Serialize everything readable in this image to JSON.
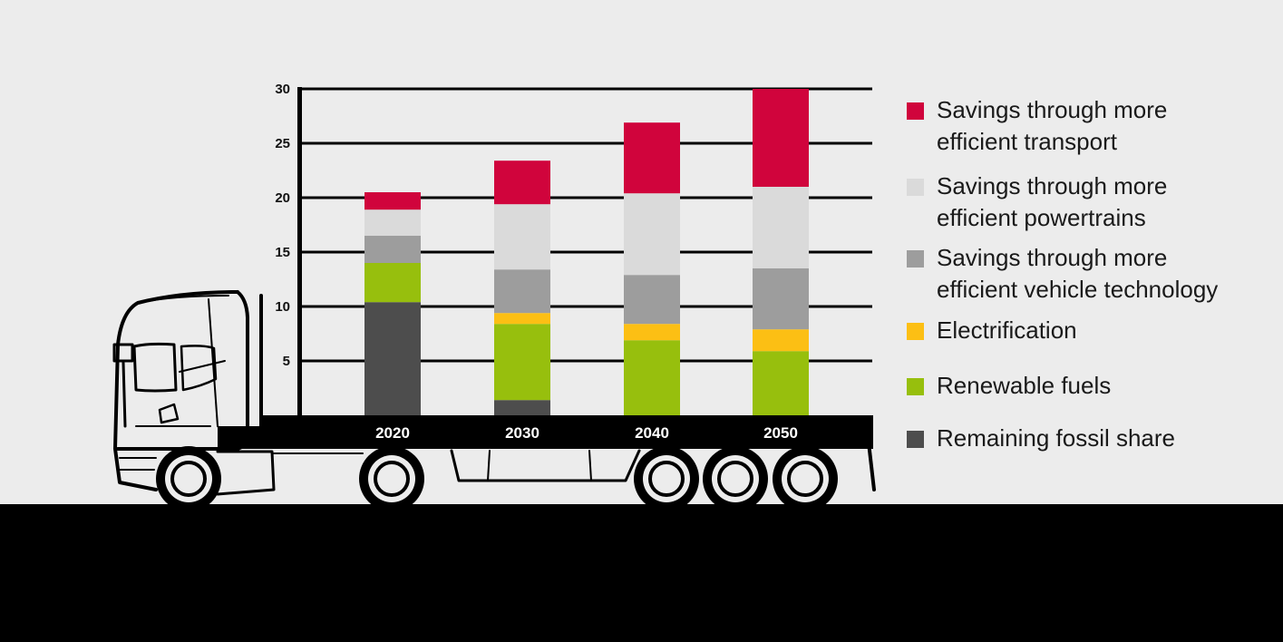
{
  "chart_data": {
    "type": "bar",
    "stacked": true,
    "title": "",
    "xlabel": "",
    "ylabel": "",
    "categories": [
      "2020",
      "2030",
      "2040",
      "2050"
    ],
    "y_ticks": [
      5,
      10,
      15,
      20,
      25,
      30
    ],
    "ylim": [
      0,
      30
    ],
    "grid": true,
    "legend_position": "right",
    "series": [
      {
        "name": "Remaining fossil share",
        "color": "#4d4d4d",
        "values": [
          10.4,
          1.4,
          0,
          0
        ]
      },
      {
        "name": "Renewable fuels",
        "color": "#97bf0d",
        "values": [
          3.6,
          7.0,
          6.9,
          5.9
        ]
      },
      {
        "name": "Electrification",
        "color": "#fcbf14",
        "values": [
          0,
          1.0,
          1.5,
          2.0
        ]
      },
      {
        "name": "Savings through more efficient vehicle technology",
        "color": "#9d9d9d",
        "values": [
          2.5,
          4.0,
          4.5,
          5.6
        ]
      },
      {
        "name": "Savings through more efficient powertrains",
        "color": "#dadada",
        "values": [
          2.4,
          6.0,
          7.5,
          7.5
        ]
      },
      {
        "name": "Savings through more efficient transport",
        "color": "#d0043c",
        "values": [
          1.6,
          4.0,
          6.5,
          9.0
        ]
      }
    ]
  },
  "legend": [
    {
      "label": "Savings through more\nefficient transport",
      "color": "#d0043c"
    },
    {
      "label": "Savings through more\nefficient powertrains",
      "color": "#dadada"
    },
    {
      "label": "Savings through more\nefficient vehicle technology",
      "color": "#9d9d9d"
    },
    {
      "label": "Electrification",
      "color": "#fcbf14"
    },
    {
      "label": "Renewable fuels",
      "color": "#97bf0d"
    },
    {
      "label": "Remaining fossil share",
      "color": "#4d4d4d"
    }
  ]
}
